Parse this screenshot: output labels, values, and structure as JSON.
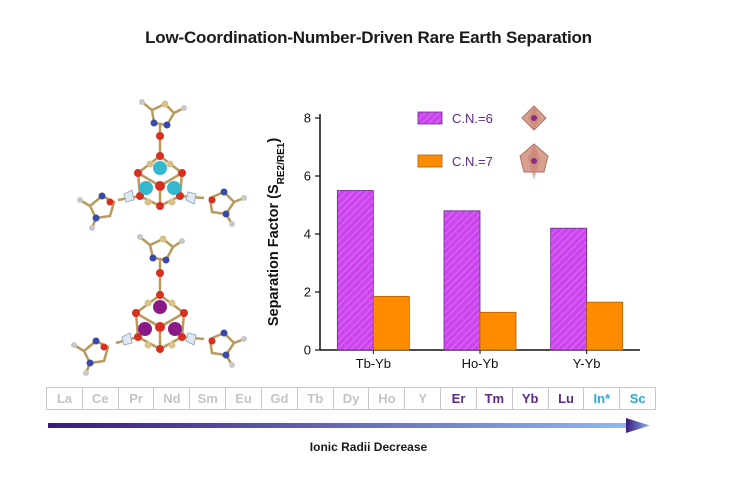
{
  "title": "Low-Coordination-Number-Driven Rare Earth Separation",
  "caption": "Ionic Radii Decrease",
  "elements": [
    {
      "symbol": "La",
      "color": "#c4c4c4"
    },
    {
      "symbol": "Ce",
      "color": "#c4c4c4"
    },
    {
      "symbol": "Pr",
      "color": "#c4c4c4"
    },
    {
      "symbol": "Nd",
      "color": "#c4c4c4"
    },
    {
      "symbol": "Sm",
      "color": "#c4c4c4"
    },
    {
      "symbol": "Eu",
      "color": "#c4c4c4"
    },
    {
      "symbol": "Gd",
      "color": "#c4c4c4"
    },
    {
      "symbol": "Tb",
      "color": "#c4c4c4"
    },
    {
      "symbol": "Dy",
      "color": "#c4c4c4"
    },
    {
      "symbol": "Ho",
      "color": "#c4c4c4"
    },
    {
      "symbol": "Y",
      "color": "#c4c4c4"
    },
    {
      "symbol": "Er",
      "color": "#5a2a86"
    },
    {
      "symbol": "Tm",
      "color": "#5a2a86"
    },
    {
      "symbol": "Yb",
      "color": "#5a2a86"
    },
    {
      "symbol": "Lu",
      "color": "#5a2a86"
    },
    {
      "symbol": "In*",
      "color": "#2aa8d8"
    },
    {
      "symbol": "Sc",
      "color": "#2aa8d8"
    }
  ],
  "colors": {
    "cn6": "#cc44ee",
    "cn7": "#ff8c00",
    "arrow_start": "#3a1a7a",
    "arrow_end": "#8fb8f0"
  },
  "chart_data": {
    "type": "bar",
    "categories": [
      "Tb-Yb",
      "Ho-Yb",
      "Y-Yb"
    ],
    "series": [
      {
        "name": "C.N.=6",
        "values": [
          5.5,
          4.8,
          4.2
        ],
        "pattern": "hatched"
      },
      {
        "name": "C.N.=7",
        "values": [
          1.85,
          1.3,
          1.65
        ]
      }
    ],
    "ylabel": "Separation Factor (S",
    "ylabel_sub": "RE2/RE1",
    "ylabel_end": ")",
    "ylim": [
      0,
      8
    ],
    "yticks": [
      "0",
      "2",
      "4",
      "6",
      "8"
    ],
    "legend_position": "top-right",
    "grid": false
  }
}
